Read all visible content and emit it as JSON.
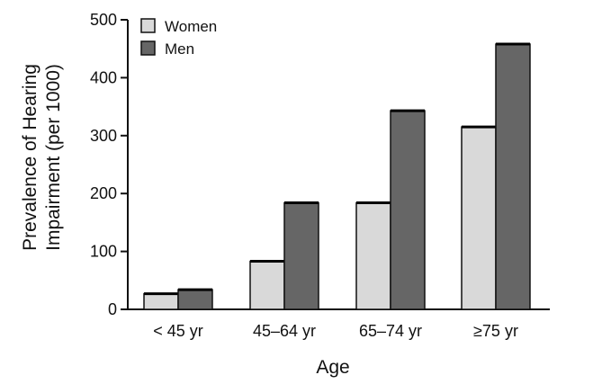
{
  "chart_data": {
    "type": "bar",
    "categories": [
      "< 45 yr",
      "45–64 yr",
      "65–74 yr",
      "≥75 yr"
    ],
    "series": [
      {
        "name": "Women",
        "values": [
          27,
          83,
          184,
          315
        ],
        "color": "#d9d9d9"
      },
      {
        "name": "Men",
        "values": [
          34,
          184,
          343,
          458
        ],
        "color": "#666666"
      }
    ],
    "xlabel": "Age",
    "ylabel_lines": [
      "Prevalence of Hearing",
      "Impairment (per 1000)"
    ],
    "ylim": [
      0,
      500
    ],
    "yticks": [
      0,
      100,
      200,
      300,
      400,
      500
    ],
    "grid": false,
    "legend_position": "top-left"
  }
}
